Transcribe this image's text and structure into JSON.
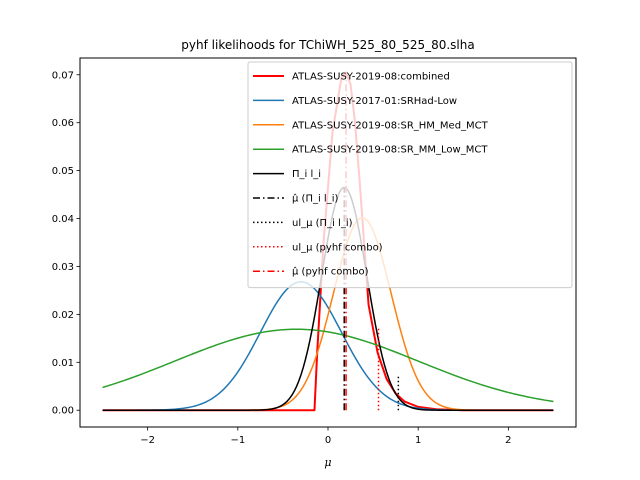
{
  "chart_data": {
    "type": "line",
    "title": "pyhf likelihoods for TChiWH_525_80_525_80.slha",
    "xlabel": "μ",
    "ylabel": "",
    "xlim": [
      -2.75,
      2.75
    ],
    "ylim": [
      -0.0035,
      0.0735
    ],
    "xticks": [
      -2,
      -1,
      0,
      1,
      2
    ],
    "xtick_labels": [
      "−2",
      "−1",
      "0",
      "1",
      "2"
    ],
    "yticks": [
      0.0,
      0.01,
      0.02,
      0.03,
      0.04,
      0.05,
      0.06,
      0.07
    ],
    "ytick_labels": [
      "0.00",
      "0.01",
      "0.02",
      "0.03",
      "0.04",
      "0.05",
      "0.06",
      "0.07"
    ],
    "grid": false,
    "legend_position": "top-right",
    "x_range": [
      -2.5,
      2.5
    ],
    "series": [
      {
        "name": "ATLAS-SUSY-2019-08:combined",
        "color": "#ff0000",
        "style": "solid",
        "width": 2,
        "x": [
          -2.5,
          -0.15,
          -0.12,
          -0.05,
          0.05,
          0.15,
          0.2,
          0.25,
          0.3,
          0.35,
          0.45,
          0.55,
          0.65,
          0.75,
          0.85,
          1.0,
          1.2,
          1.5,
          2.5
        ],
        "y": [
          0.0,
          0.0,
          0.012,
          0.035,
          0.058,
          0.0695,
          0.0705,
          0.068,
          0.06,
          0.048,
          0.022,
          0.012,
          0.0065,
          0.0035,
          0.0018,
          0.0007,
          0.0002,
          0.0,
          0.0
        ]
      },
      {
        "name": "ATLAS-SUSY-2017-01:SRHad-Low",
        "color": "#1f77b4",
        "style": "solid",
        "width": 1.5,
        "mean": -0.3,
        "sigma": 0.45,
        "peak": 0.0268
      },
      {
        "name": "ATLAS-SUSY-2019-08:SR_HM_Med_MCT",
        "color": "#ff7f0e",
        "style": "solid",
        "width": 1.5,
        "mean": 0.38,
        "sigma": 0.32,
        "peak": 0.0402
      },
      {
        "name": "ATLAS-SUSY-2019-08:SR_MM_Low_MCT",
        "color": "#2ca02c",
        "style": "solid",
        "width": 1.5,
        "mean": -0.35,
        "sigma": 1.35,
        "peak": 0.0169
      },
      {
        "name": "Π_i l_i",
        "color": "#000000",
        "style": "solid",
        "width": 1.5,
        "mean": 0.18,
        "sigma": 0.25,
        "peak": 0.0465
      }
    ],
    "vlines": [
      {
        "name": "μ̂ (Π_i l_i)",
        "color": "#000000",
        "style": "dashdot",
        "x": 0.18,
        "y_top": 0.0465
      },
      {
        "name": "ul_μ (Π_i l_i)",
        "color": "#000000",
        "style": "dotted",
        "x": 0.78,
        "y_top": 0.0075
      },
      {
        "name": "ul_μ (pyhf combo)",
        "color": "#ff0000",
        "style": "dotted",
        "x": 0.56,
        "y_top": 0.0175
      },
      {
        "name": "μ̂ (pyhf combo)",
        "color": "#ff0000",
        "style": "dashdot",
        "x": 0.2,
        "y_top": 0.0705
      }
    ],
    "legend": [
      {
        "label": "ATLAS-SUSY-2019-08:combined",
        "color": "#ff0000",
        "style": "solid",
        "width": 2
      },
      {
        "label": "ATLAS-SUSY-2017-01:SRHad-Low",
        "color": "#1f77b4",
        "style": "solid",
        "width": 1.5
      },
      {
        "label": "ATLAS-SUSY-2019-08:SR_HM_Med_MCT",
        "color": "#ff7f0e",
        "style": "solid",
        "width": 1.5
      },
      {
        "label": "ATLAS-SUSY-2019-08:SR_MM_Low_MCT",
        "color": "#2ca02c",
        "style": "solid",
        "width": 1.5
      },
      {
        "label": "Π_i l_i",
        "color": "#000000",
        "style": "solid",
        "width": 1.5
      },
      {
        "label": "μ̂ (Π_i l_i)",
        "color": "#000000",
        "style": "dashdot",
        "width": 1.5
      },
      {
        "label": "ul_μ (Π_i l_i)",
        "color": "#000000",
        "style": "dotted",
        "width": 1.5
      },
      {
        "label": "ul_μ (pyhf combo)",
        "color": "#ff0000",
        "style": "dotted",
        "width": 1.5
      },
      {
        "label": "μ̂ (pyhf combo)",
        "color": "#ff0000",
        "style": "dashdot",
        "width": 1.5
      }
    ]
  }
}
